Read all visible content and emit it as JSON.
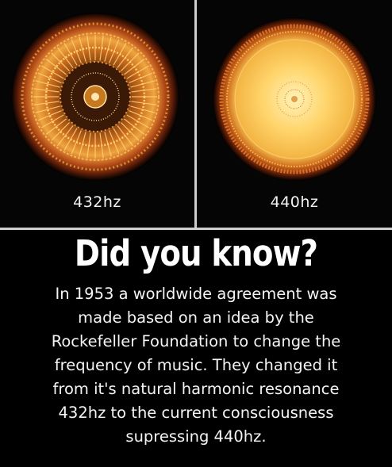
{
  "panels": [
    {
      "label": "432hz",
      "pattern": "432hz-cymatic-mandala-icon",
      "color": "#e8a040"
    },
    {
      "label": "440hz",
      "pattern": "440hz-cymatic-disc-icon",
      "color": "#f5c46a"
    }
  ],
  "headline": "Did you know?",
  "body_lines": [
    "In 1953 a worldwide agreement was",
    "made based on an idea by the",
    "Rockefeller Foundation to change the",
    "frequency of music. They changed it",
    "from it's natural harmonic resonance",
    "432hz to the current consciousness",
    "supressing 440hz."
  ]
}
